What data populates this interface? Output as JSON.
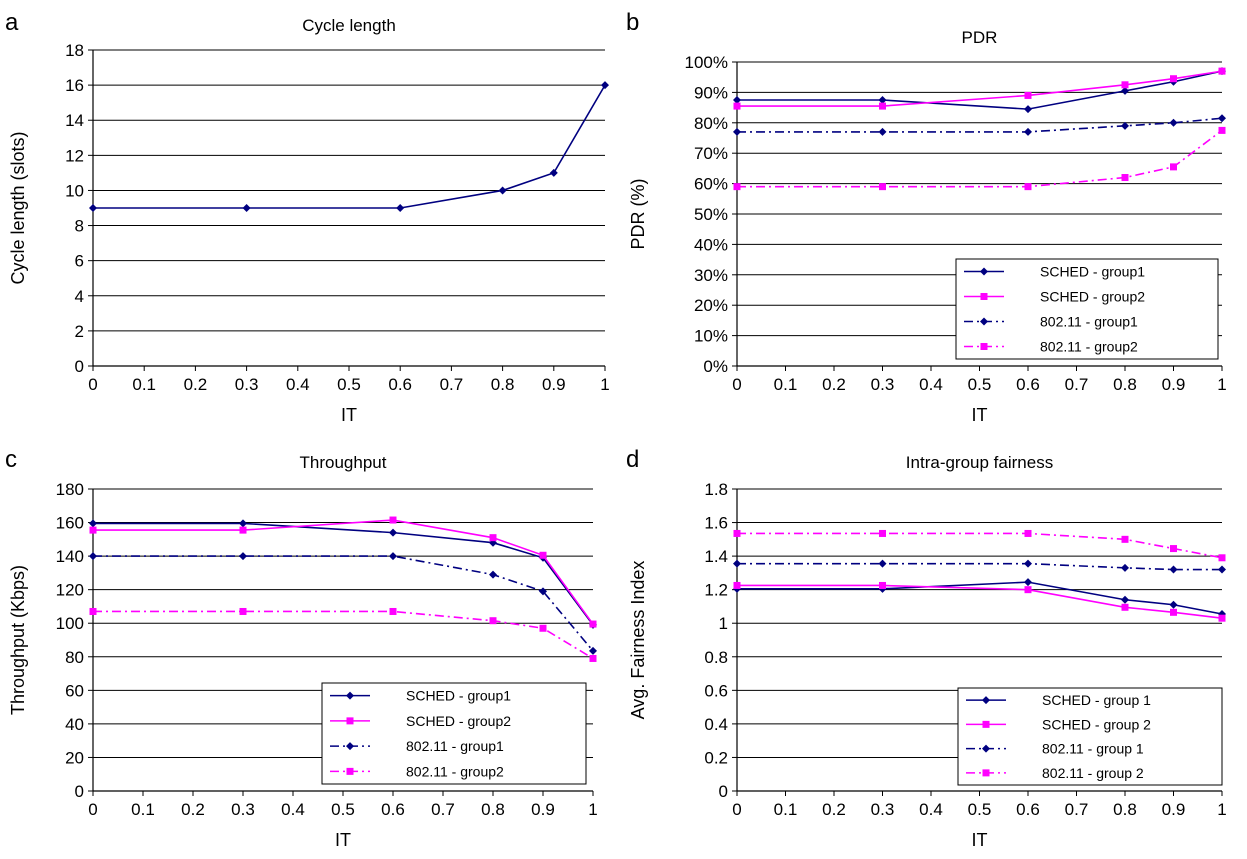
{
  "chart_data": [
    {
      "panel_letter": "a",
      "type": "line",
      "title": "Cycle length",
      "xlabel": "IT",
      "ylabel": "Cycle length (slots)",
      "ylim": [
        0,
        18
      ],
      "ystep": 2,
      "yticks": [
        "0",
        "2",
        "4",
        "6",
        "8",
        "10",
        "12",
        "14",
        "16",
        "18"
      ],
      "xlim": [
        0,
        1
      ],
      "xticks": [
        "0",
        "0.1",
        "0.2",
        "0.3",
        "0.4",
        "0.5",
        "0.6",
        "0.7",
        "0.8",
        "0.9",
        "1"
      ],
      "x": [
        0,
        0.3,
        0.6,
        0.8,
        0.9,
        1
      ],
      "grid": "horizontal",
      "legend": null,
      "series": [
        {
          "values": [
            9,
            9,
            9,
            10,
            11,
            16
          ],
          "color": "#000080",
          "dash": "solid",
          "marker": "diamond"
        }
      ]
    },
    {
      "panel_letter": "b",
      "type": "line",
      "title": "PDR",
      "xlabel": "IT",
      "ylabel": "PDR (%)",
      "ylim": [
        0,
        100
      ],
      "ystep": 10,
      "yticks": [
        "0%",
        "10%",
        "20%",
        "30%",
        "40%",
        "50%",
        "60%",
        "70%",
        "80%",
        "90%",
        "100%"
      ],
      "xlim": [
        0,
        1
      ],
      "xticks": [
        "0",
        "0.1",
        "0.2",
        "0.3",
        "0.4",
        "0.5",
        "0.6",
        "0.7",
        "0.8",
        "0.9",
        "1"
      ],
      "x": [
        0,
        0.3,
        0.6,
        0.8,
        0.9,
        1
      ],
      "grid": "horizontal",
      "legend": "bottom-right",
      "series": [
        {
          "name": "SCHED - group1",
          "values": [
            87.5,
            87.5,
            84.5,
            90.5,
            93.5,
            97
          ],
          "color": "#000080",
          "dash": "solid",
          "marker": "diamond"
        },
        {
          "name": "SCHED - group2",
          "values": [
            85.5,
            85.5,
            89,
            92.5,
            94.5,
            97
          ],
          "color": "#ff00ff",
          "dash": "solid",
          "marker": "square"
        },
        {
          "name": "802.11 - group1",
          "values": [
            77,
            77,
            77,
            79,
            80,
            81.5
          ],
          "color": "#000080",
          "dash": "dashdot",
          "marker": "diamond"
        },
        {
          "name": "802.11 - group2",
          "values": [
            59,
            59,
            59,
            62,
            65.5,
            77.5
          ],
          "color": "#ff00ff",
          "dash": "dashdot",
          "marker": "square"
        }
      ]
    },
    {
      "panel_letter": "c",
      "type": "line",
      "title": "Throughput",
      "xlabel": "IT",
      "ylabel": "Throughput (Kbps)",
      "ylim": [
        0,
        180
      ],
      "ystep": 20,
      "yticks": [
        "0",
        "20",
        "40",
        "60",
        "80",
        "100",
        "120",
        "140",
        "160",
        "180"
      ],
      "xlim": [
        0,
        1
      ],
      "xticks": [
        "0",
        "0.1",
        "0.2",
        "0.3",
        "0.4",
        "0.5",
        "0.6",
        "0.7",
        "0.8",
        "0.9",
        "1"
      ],
      "x": [
        0,
        0.3,
        0.6,
        0.8,
        0.9,
        1
      ],
      "grid": "horizontal",
      "legend": "bottom-right",
      "series": [
        {
          "name": "SCHED - group1",
          "values": [
            159.5,
            159.5,
            154,
            148,
            139,
            99
          ],
          "color": "#000080",
          "dash": "solid",
          "marker": "diamond"
        },
        {
          "name": "SCHED - group2",
          "values": [
            155.5,
            155.5,
            161.5,
            151,
            140.5,
            99.5
          ],
          "color": "#ff00ff",
          "dash": "solid",
          "marker": "square"
        },
        {
          "name": "802.11 - group1",
          "values": [
            140,
            140,
            140,
            129,
            119,
            83.5
          ],
          "color": "#000080",
          "dash": "dashdot",
          "marker": "diamond"
        },
        {
          "name": "802.11 - group2",
          "values": [
            107,
            107,
            107,
            101.5,
            97,
            79
          ],
          "color": "#ff00ff",
          "dash": "dashdot",
          "marker": "square"
        }
      ]
    },
    {
      "panel_letter": "d",
      "type": "line",
      "title": "Intra-group fairness",
      "xlabel": "IT",
      "ylabel": "Avg. Fairness Index",
      "ylim": [
        0,
        1.8
      ],
      "ystep": 0.2,
      "yticks": [
        "0",
        "0.2",
        "0.4",
        "0.6",
        "0.8",
        "1",
        "1.2",
        "1.4",
        "1.6",
        "1.8"
      ],
      "xlim": [
        0,
        1
      ],
      "xticks": [
        "0",
        "0.1",
        "0.2",
        "0.3",
        "0.4",
        "0.5",
        "0.6",
        "0.7",
        "0.8",
        "0.9",
        "1"
      ],
      "x": [
        0,
        0.3,
        0.6,
        0.8,
        0.9,
        1
      ],
      "grid": "horizontal",
      "legend": "bottom-right",
      "series": [
        {
          "name": "SCHED - group 1",
          "values": [
            1.205,
            1.205,
            1.245,
            1.14,
            1.11,
            1.055
          ],
          "color": "#000080",
          "dash": "solid",
          "marker": "diamond"
        },
        {
          "name": "SCHED - group 2",
          "values": [
            1.225,
            1.225,
            1.2,
            1.095,
            1.065,
            1.03
          ],
          "color": "#ff00ff",
          "dash": "solid",
          "marker": "square"
        },
        {
          "name": "802.11 - group 1",
          "values": [
            1.355,
            1.355,
            1.355,
            1.33,
            1.32,
            1.32
          ],
          "color": "#000080",
          "dash": "dashdot",
          "marker": "diamond"
        },
        {
          "name": "802.11 - group 2",
          "values": [
            1.535,
            1.535,
            1.535,
            1.5,
            1.445,
            1.39
          ],
          "color": "#ff00ff",
          "dash": "dashdot",
          "marker": "square"
        }
      ]
    }
  ]
}
